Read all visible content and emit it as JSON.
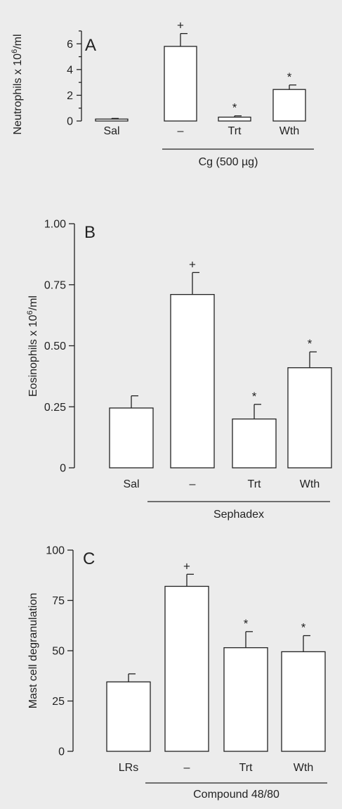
{
  "chart_data": [
    {
      "type": "bar",
      "panel_label": "A",
      "ylabel_parts": [
        "Neutrophils x 10",
        "6",
        "/ml"
      ],
      "ylim": [
        0,
        7
      ],
      "yticks": [
        0,
        2,
        4,
        6
      ],
      "yminor": [
        1,
        3,
        5,
        7
      ],
      "categories": [
        "Sal",
        "–",
        "Trt",
        "Wth"
      ],
      "values": [
        0.15,
        5.8,
        0.3,
        2.45
      ],
      "errors": [
        0.05,
        1.0,
        0.1,
        0.35
      ],
      "markers": [
        "",
        "+",
        "*",
        "*"
      ],
      "group_label": "Cg (500 µg)"
    },
    {
      "type": "bar",
      "panel_label": "B",
      "ylabel_parts": [
        "Eosinophils x 10",
        "6",
        "/ml"
      ],
      "ylim": [
        0,
        1.0
      ],
      "yticks": [
        "0",
        "0.25",
        "0.50",
        "0.75",
        "1.00"
      ],
      "categories": [
        "Sal",
        "–",
        "Trt",
        "Wth"
      ],
      "values": [
        0.245,
        0.71,
        0.2,
        0.41
      ],
      "errors": [
        0.05,
        0.09,
        0.06,
        0.065
      ],
      "markers": [
        "",
        "+",
        "*",
        "*"
      ],
      "group_label": "Sephadex"
    },
    {
      "type": "bar",
      "panel_label": "C",
      "ylabel_parts": [
        "Mast cell degranulation"
      ],
      "ylim": [
        0,
        100
      ],
      "yticks": [
        "0",
        "25",
        "50",
        "75",
        "100"
      ],
      "categories": [
        "LRs",
        "–",
        "Trt",
        "Wth"
      ],
      "values": [
        34.5,
        82,
        51.5,
        49.5
      ],
      "errors": [
        4,
        6,
        8,
        8
      ],
      "markers": [
        "",
        "+",
        "*",
        "*"
      ],
      "group_label": "Compound 48/80"
    }
  ]
}
